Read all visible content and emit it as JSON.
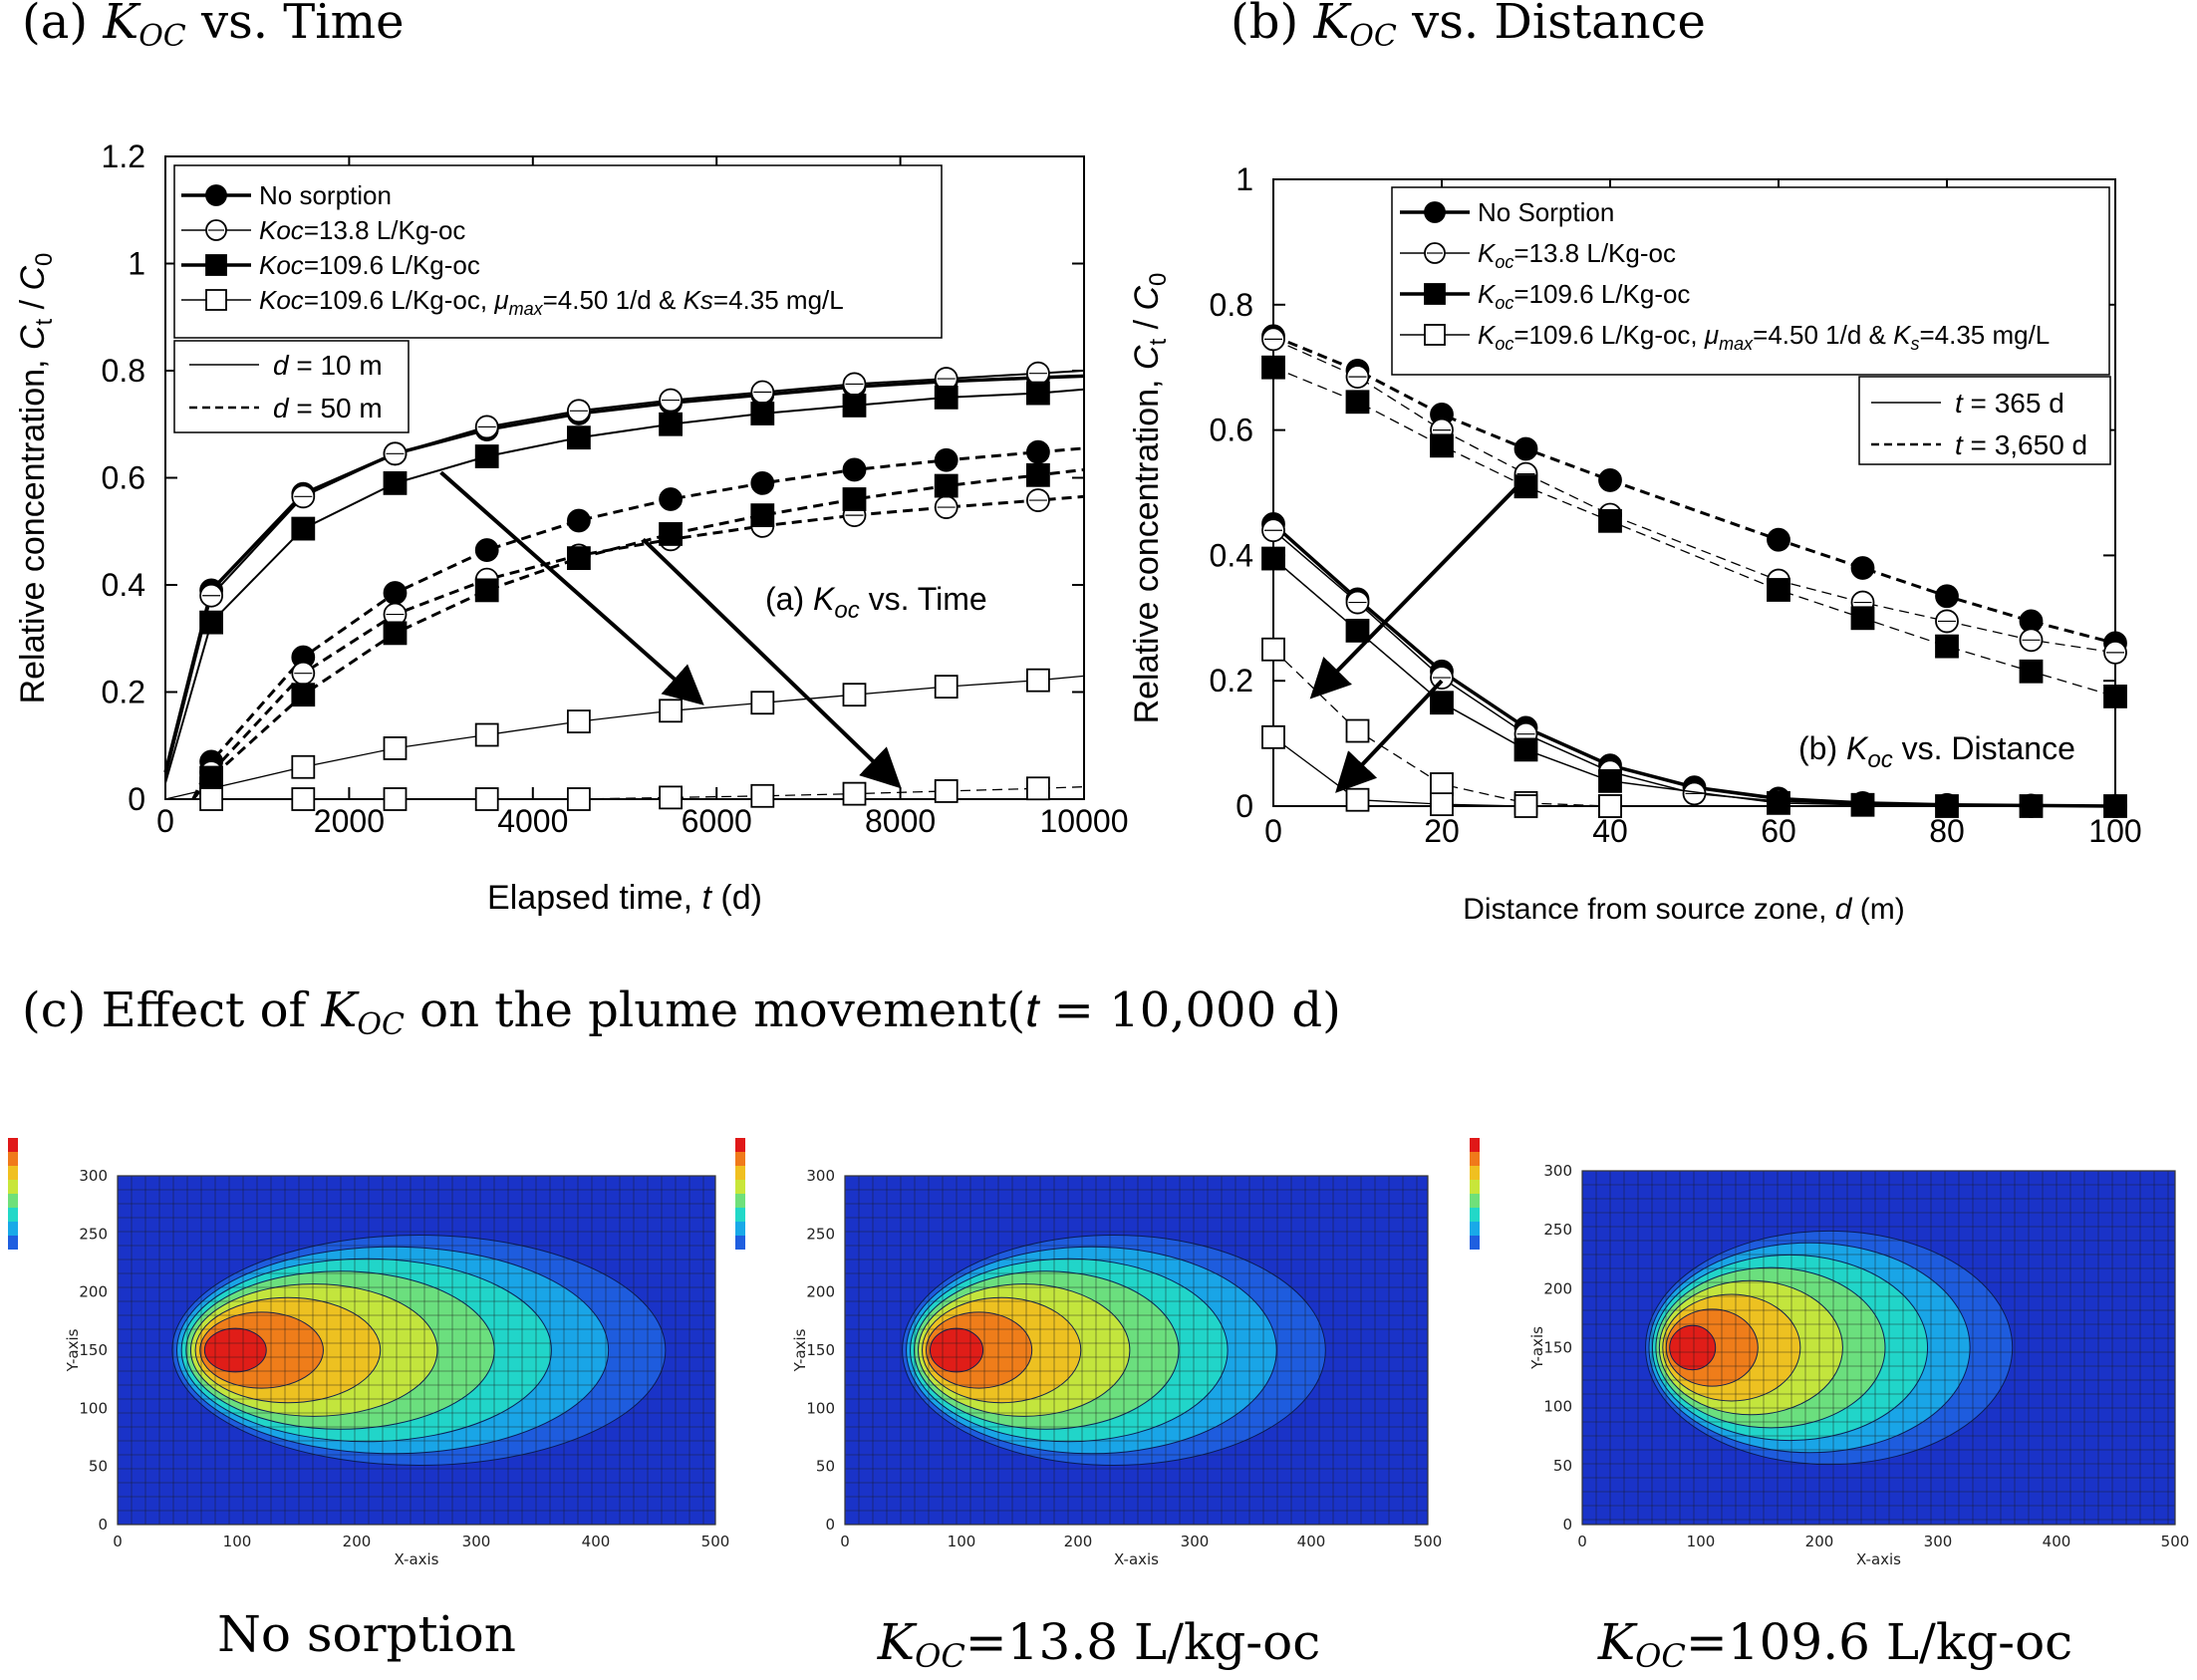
{
  "panel_titles": {
    "a": {
      "prefix": "(a) ",
      "k": "K",
      "sub": "OC",
      "suffix": " vs. Time"
    },
    "b": {
      "prefix": "(b) ",
      "k": "K",
      "sub": "OC",
      "suffix": " vs. Distance"
    },
    "c": {
      "prefix": "(c) Effect of ",
      "k": "K",
      "sub": "OC",
      "suffix": " on the plume movement(",
      "t": "t",
      "tail": " = 10,000 d)"
    }
  },
  "colors": {
    "axis": "#000000",
    "plume_bg": "#1a33c8",
    "grid": "#1a1a1a"
  },
  "chart_data": [
    {
      "type": "line",
      "title": "(a) K_oc vs. Time",
      "annotation": {
        "prefix": "(a) ",
        "k": "K",
        "sub": "oc",
        "suffix": " vs. Time"
      },
      "xlabel": {
        "text": "Elapsed time, ",
        "var": "t",
        "unit": " (d)"
      },
      "ylabel": {
        "text": "Relative concentration, ",
        "v1": "C",
        "s1": "t",
        "sep": " / ",
        "v2": "C",
        "s2": "0"
      },
      "xlim": [
        0,
        10000
      ],
      "ylim": [
        0,
        1.2
      ],
      "xticks": [
        0,
        2000,
        4000,
        6000,
        8000,
        10000
      ],
      "yticks": [
        0,
        0.2,
        0.4,
        0.6,
        0.8,
        1,
        1.2
      ],
      "xtick_labels": [
        "0",
        "2000",
        "4000",
        "6000",
        "8000",
        "10000"
      ],
      "ytick_labels": [
        "0",
        "0.2",
        "0.4",
        "0.6",
        "0.8",
        "1",
        "1.2"
      ],
      "marker_x": [
        500,
        1500,
        2500,
        3500,
        4500,
        5500,
        6500,
        7500,
        8500,
        9500
      ],
      "legend": [
        {
          "marker": "filled-circle",
          "k": "",
          "sub": "",
          "text": "No sorption"
        },
        {
          "marker": "open-circle",
          "k": "Koc",
          "sub": "",
          "text": "=13.8 L/Kg-oc"
        },
        {
          "marker": "filled-square",
          "k": "Koc",
          "sub": "",
          "text": "=109.6 L/Kg-oc"
        },
        {
          "marker": "open-square",
          "k": "Koc",
          "sub": "",
          "text": "=109.6 L/Kg-oc, ",
          "mu": "μ",
          "mu_sub": "max",
          "mid": "=4.50 1/d & ",
          "k2": "Ks",
          "k2_sub": "",
          "end": "=4.35 mg/L"
        }
      ],
      "line_legend": [
        {
          "style": "solid",
          "var": "d",
          "text": " = 10 m"
        },
        {
          "style": "dashed",
          "var": "d",
          "text": " = 50 m"
        }
      ],
      "series": [
        {
          "name": "No sorption, d = 10 m",
          "marker": "filled-circle",
          "style": "solid",
          "width": 3.5,
          "x": [
            0,
            500,
            1500,
            2500,
            3500,
            4500,
            5500,
            6500,
            7500,
            8500,
            9500,
            10000
          ],
          "y": [
            0.05,
            0.39,
            0.57,
            0.645,
            0.69,
            0.72,
            0.74,
            0.755,
            0.77,
            0.78,
            0.787,
            0.79
          ]
        },
        {
          "name": "Koc=13.8, d = 10 m",
          "marker": "open-circle",
          "style": "solid",
          "width": 2,
          "x": [
            0,
            500,
            1500,
            2500,
            3500,
            4500,
            5500,
            6500,
            7500,
            8500,
            9500,
            10000
          ],
          "y": [
            0.04,
            0.38,
            0.565,
            0.645,
            0.695,
            0.725,
            0.745,
            0.76,
            0.775,
            0.785,
            0.795,
            0.8
          ]
        },
        {
          "name": "Koc=109.6, d = 10 m",
          "marker": "filled-square",
          "style": "solid",
          "width": 2,
          "x": [
            0,
            500,
            1500,
            2500,
            3500,
            4500,
            5500,
            6500,
            7500,
            8500,
            9500,
            10000
          ],
          "y": [
            0.03,
            0.33,
            0.505,
            0.59,
            0.64,
            0.675,
            0.7,
            0.72,
            0.735,
            0.75,
            0.758,
            0.765
          ]
        },
        {
          "name": "Koc=109.6 biodeg, d = 10 m",
          "marker": "open-square",
          "style": "solid",
          "width": 1.3,
          "x": [
            0,
            500,
            1500,
            2500,
            3500,
            4500,
            5500,
            6500,
            7500,
            8500,
            9500,
            10000
          ],
          "y": [
            0.0,
            0.02,
            0.06,
            0.095,
            0.12,
            0.145,
            0.165,
            0.18,
            0.195,
            0.21,
            0.222,
            0.23
          ]
        },
        {
          "name": "No sorption, d = 50 m",
          "marker": "filled-circle",
          "style": "dashed",
          "width": 3,
          "x": [
            300,
            500,
            1500,
            2500,
            3500,
            4500,
            5500,
            6500,
            7500,
            8500,
            9500,
            10000
          ],
          "y": [
            0.0,
            0.07,
            0.265,
            0.385,
            0.465,
            0.52,
            0.56,
            0.59,
            0.615,
            0.633,
            0.648,
            0.655
          ]
        },
        {
          "name": "Koc=13.8, d = 50 m",
          "marker": "open-circle",
          "style": "dashed",
          "width": 3,
          "x": [
            300,
            500,
            1500,
            2500,
            3500,
            4500,
            5500,
            6500,
            7500,
            8500,
            9500,
            10000
          ],
          "y": [
            0.0,
            0.05,
            0.235,
            0.345,
            0.41,
            0.455,
            0.485,
            0.51,
            0.53,
            0.545,
            0.558,
            0.565
          ]
        },
        {
          "name": "Koc=109.6, d = 50 m",
          "marker": "filled-square",
          "style": "dashed",
          "width": 3,
          "x": [
            300,
            500,
            1500,
            2500,
            3500,
            4500,
            5500,
            6500,
            7500,
            8500,
            9500,
            10000
          ],
          "y": [
            0.0,
            0.04,
            0.195,
            0.31,
            0.39,
            0.45,
            0.495,
            0.53,
            0.56,
            0.585,
            0.605,
            0.615
          ]
        },
        {
          "name": "Koc=109.6 biodeg, d = 50 m",
          "marker": "open-square",
          "style": "dashed",
          "width": 1.3,
          "x": [
            500,
            1500,
            2500,
            3500,
            4500,
            5500,
            6500,
            7500,
            8500,
            9500,
            10000
          ],
          "y": [
            0.0,
            0.0,
            0.0,
            0.0,
            0.0,
            0.003,
            0.006,
            0.01,
            0.015,
            0.02,
            0.023
          ]
        }
      ],
      "arrows": [
        {
          "from": [
            3000,
            0.61
          ],
          "to": [
            5800,
            0.185
          ]
        },
        {
          "from": [
            5200,
            0.485
          ],
          "to": [
            7950,
            0.03
          ]
        }
      ]
    },
    {
      "type": "line",
      "title": "(b) K_oc vs. Distance",
      "annotation": {
        "prefix": "(b) ",
        "k": "K",
        "sub": "oc",
        "suffix": " vs. Distance"
      },
      "xlabel": {
        "text": "Distance from source zone, ",
        "var": "d",
        "unit": " (m)"
      },
      "ylabel": {
        "text": "Relative concentration, ",
        "v1": "C",
        "s1": "t",
        "sep": " / ",
        "v2": "C",
        "s2": "0"
      },
      "xlim": [
        0,
        100
      ],
      "ylim": [
        0,
        1
      ],
      "xticks": [
        0,
        20,
        40,
        60,
        80,
        100
      ],
      "yticks": [
        0,
        0.2,
        0.4,
        0.6,
        0.8,
        1
      ],
      "xtick_labels": [
        "0",
        "20",
        "40",
        "60",
        "80",
        "100"
      ],
      "ytick_labels": [
        "0",
        "0.2",
        "0.4",
        "0.6",
        "0.8",
        "1"
      ],
      "legend": [
        {
          "marker": "filled-circle",
          "k": "",
          "sub": "",
          "text": "No Sorption"
        },
        {
          "marker": "open-circle",
          "k": "K",
          "sub": "oc",
          "text": "=13.8 L/Kg-oc"
        },
        {
          "marker": "filled-square",
          "k": "K",
          "sub": "oc",
          "text": "=109.6 L/Kg-oc"
        },
        {
          "marker": "open-square",
          "k": "K",
          "sub": "oc",
          "text": "=109.6 L/Kg-oc, ",
          "mu": "μ",
          "mu_sub": "max",
          "mid": "=4.50 1/d & ",
          "k2": "K",
          "k2_sub": "s",
          "end": "=4.35 mg/L"
        }
      ],
      "line_legend": [
        {
          "style": "solid",
          "var": "t",
          "text": " = 365 d"
        },
        {
          "style": "dashed",
          "var": "t",
          "text": " = 3,650 d"
        }
      ],
      "series": [
        {
          "name": "No sorption, t = 3,650 d",
          "marker": "filled-circle",
          "style": "dashed",
          "width": 3,
          "x": [
            0,
            10,
            20,
            30,
            40,
            60,
            70,
            80,
            90,
            100
          ],
          "y": [
            0.75,
            0.695,
            0.625,
            0.57,
            0.52,
            0.425,
            0.38,
            0.335,
            0.295,
            0.26
          ]
        },
        {
          "name": "Koc=13.8, t = 3,650 d",
          "marker": "open-circle",
          "style": "dashed",
          "width": 1.3,
          "x": [
            0,
            10,
            20,
            30,
            40,
            60,
            70,
            80,
            90,
            100
          ],
          "y": [
            0.745,
            0.685,
            0.6,
            0.53,
            0.465,
            0.36,
            0.325,
            0.295,
            0.265,
            0.245
          ]
        },
        {
          "name": "Koc=109.6, t = 3,650 d",
          "marker": "filled-square",
          "style": "dashed",
          "width": 1.3,
          "x": [
            0,
            10,
            20,
            30,
            40,
            60,
            70,
            80,
            90,
            100
          ],
          "y": [
            0.7,
            0.645,
            0.575,
            0.51,
            0.455,
            0.345,
            0.3,
            0.255,
            0.215,
            0.175
          ]
        },
        {
          "name": "Koc=109.6 biodeg, t = 3,650 d",
          "marker": "open-square",
          "style": "dashed",
          "width": 1.3,
          "x": [
            0,
            10,
            20,
            30,
            40
          ],
          "y": [
            0.25,
            0.12,
            0.035,
            0.005,
            0.0
          ]
        },
        {
          "name": "No sorption, t = 365 d",
          "marker": "filled-circle",
          "style": "solid",
          "width": 3.5,
          "x": [
            0,
            10,
            20,
            30,
            40,
            50,
            60,
            70,
            80,
            90,
            100
          ],
          "y": [
            0.45,
            0.33,
            0.215,
            0.125,
            0.065,
            0.03,
            0.012,
            0.005,
            0.002,
            0.001,
            0.0
          ]
        },
        {
          "name": "Koc=13.8, t = 365 d",
          "marker": "open-circle",
          "style": "solid",
          "width": 1.5,
          "x": [
            0,
            10,
            20,
            30,
            40,
            50,
            60,
            70,
            80,
            90,
            100
          ],
          "y": [
            0.44,
            0.325,
            0.205,
            0.115,
            0.055,
            0.02,
            0.008,
            0.003,
            0.001,
            0.0,
            0.0
          ]
        },
        {
          "name": "Koc=109.6, t = 365 d",
          "marker": "filled-square",
          "style": "solid",
          "width": 1.5,
          "x": [
            0,
            10,
            20,
            30,
            40,
            60,
            70,
            80,
            90,
            100
          ],
          "y": [
            0.395,
            0.28,
            0.165,
            0.09,
            0.04,
            0.005,
            0.002,
            0.0,
            0.0,
            0.0
          ]
        },
        {
          "name": "Koc=109.6 biodeg, t = 365 d",
          "marker": "open-square",
          "style": "solid",
          "width": 1.3,
          "x": [
            0,
            10,
            20,
            30,
            40
          ],
          "y": [
            0.11,
            0.01,
            0.003,
            0.0,
            0.0
          ]
        }
      ],
      "arrows": [
        {
          "from": [
            29,
            0.51
          ],
          "to": [
            5,
            0.18
          ]
        },
        {
          "from": [
            20,
            0.2
          ],
          "to": [
            8,
            0.03
          ]
        }
      ]
    }
  ],
  "plumes": [
    {
      "caption_text": "No sorption",
      "k": "",
      "sub": "",
      "extent": 1.0,
      "x_ticks": [
        "0",
        "100",
        "200",
        "300",
        "400",
        "500"
      ],
      "y_ticks": [
        "0",
        "50",
        "100",
        "150",
        "200",
        "250",
        "300"
      ],
      "xlabel": "X-axis",
      "ylabel": "Y-axis"
    },
    {
      "caption_text": "=13.8 L/kg-oc",
      "k": "K",
      "sub": "OC",
      "extent": 0.88,
      "x_ticks": [
        "0",
        "100",
        "200",
        "300",
        "400",
        "500"
      ],
      "y_ticks": [
        "0",
        "50",
        "100",
        "150",
        "200",
        "250",
        "300"
      ],
      "xlabel": "X-axis",
      "ylabel": "Y-axis"
    },
    {
      "caption_text": "=109.6 L/kg-oc",
      "k": "K",
      "sub": "OC",
      "extent": 0.75,
      "x_ticks": [
        "0",
        "100",
        "200",
        "300",
        "400",
        "500"
      ],
      "y_ticks": [
        "0",
        "50",
        "100",
        "150",
        "200",
        "250",
        "300"
      ],
      "xlabel": "X-axis",
      "ylabel": "Y-axis"
    }
  ]
}
